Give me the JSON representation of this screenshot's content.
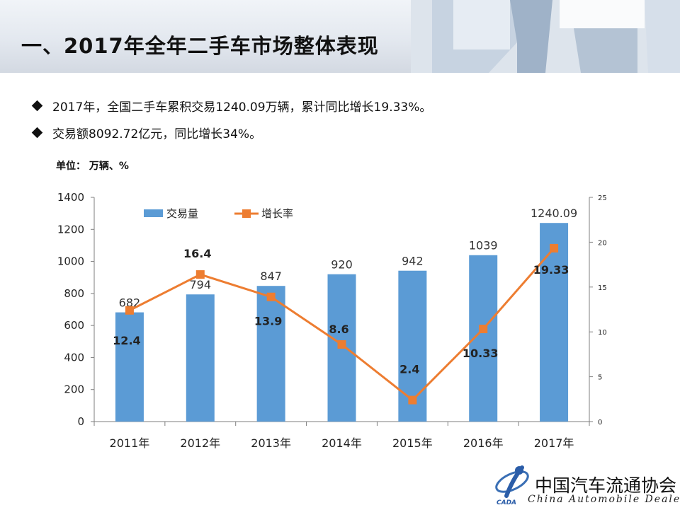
{
  "slide": {
    "title": "一、2017年全年二手车市场整体表现",
    "bullets": [
      "2017年，全国二手车累积交易1240.09万辆，累计同比增长19.33%。",
      "交易额8092.72亿元，同比增长34%。"
    ],
    "unit_label": "单位：  万辆、%"
  },
  "logo": {
    "name_cn": "中国汽车流通协会",
    "name_en": "China Automobile Dealers",
    "mark_text": "CADA"
  },
  "colors": {
    "bar": "#5b9bd5",
    "line": "#ed7d31",
    "axis": "#7f7f7f"
  },
  "chart_data": {
    "type": "bar",
    "categories": [
      "2011年",
      "2012年",
      "2013年",
      "2014年",
      "2015年",
      "2016年",
      "2017年"
    ],
    "series": [
      {
        "name": "交易量",
        "type": "bar",
        "axis": "left",
        "values": [
          682,
          794,
          847,
          920,
          942,
          1039,
          1240.09
        ],
        "labels": [
          "682",
          "794",
          "847",
          "920",
          "942",
          "1039",
          "1240.09"
        ]
      },
      {
        "name": "增长率",
        "type": "line",
        "axis": "right",
        "values": [
          12.4,
          16.4,
          13.9,
          8.6,
          2.4,
          10.33,
          19.33
        ],
        "labels": [
          "12.4",
          "16.4",
          "13.9",
          "8.6",
          "2.4",
          "10.33",
          "19.33"
        ]
      }
    ],
    "y_left": {
      "min": 0,
      "max": 1400,
      "ticks": [
        0,
        200,
        400,
        600,
        800,
        1000,
        1200,
        1400
      ]
    },
    "y_right": {
      "min": 0,
      "max": 25,
      "ticks": [
        0,
        5,
        10,
        15,
        20,
        25
      ]
    },
    "legend": "top-left",
    "grid": false
  }
}
